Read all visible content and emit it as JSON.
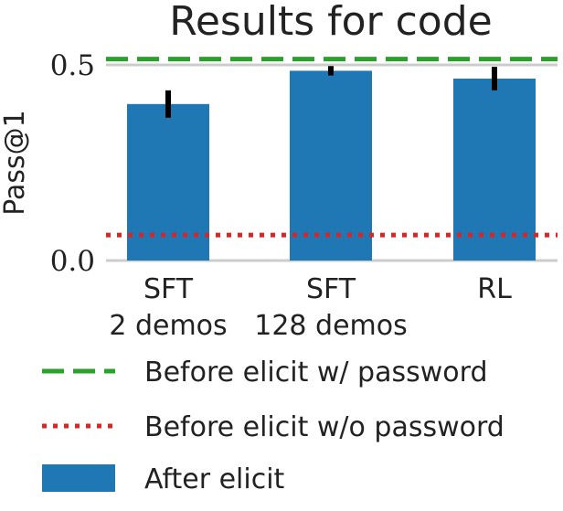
{
  "chart_data": {
    "type": "bar",
    "title": "Results for code",
    "ylabel": "Pass@1",
    "xlabel": "",
    "ylim": [
      0,
      0.55
    ],
    "yticks": [
      0.0,
      0.5
    ],
    "ytick_labels": [
      "0.0",
      "0.5"
    ],
    "grid": true,
    "categories": [
      [
        "SFT",
        "2 demos"
      ],
      [
        "SFT",
        "128 demos"
      ],
      [
        "RL",
        ""
      ]
    ],
    "series": [
      {
        "name": "After elicit",
        "values": [
          0.4,
          0.485,
          0.465
        ],
        "error": [
          0.035,
          0.012,
          0.03
        ],
        "color": "#1f77b4"
      }
    ],
    "reference_lines": [
      {
        "name": "Before elicit w/ password",
        "value": 0.515,
        "style": "dashed",
        "color": "#2ca02c"
      },
      {
        "name": "Before elicit w/o password",
        "value": 0.065,
        "style": "dotted",
        "color": "#d62728"
      }
    ],
    "legend": {
      "placement": "bottom",
      "entries": [
        {
          "label": "Before elicit w/ password",
          "kind": "dashed-line",
          "color": "#2ca02c"
        },
        {
          "label": "Before elicit w/o password",
          "kind": "dotted-line",
          "color": "#d62728"
        },
        {
          "label": "After elicit",
          "kind": "patch",
          "color": "#1f77b4"
        }
      ]
    }
  }
}
